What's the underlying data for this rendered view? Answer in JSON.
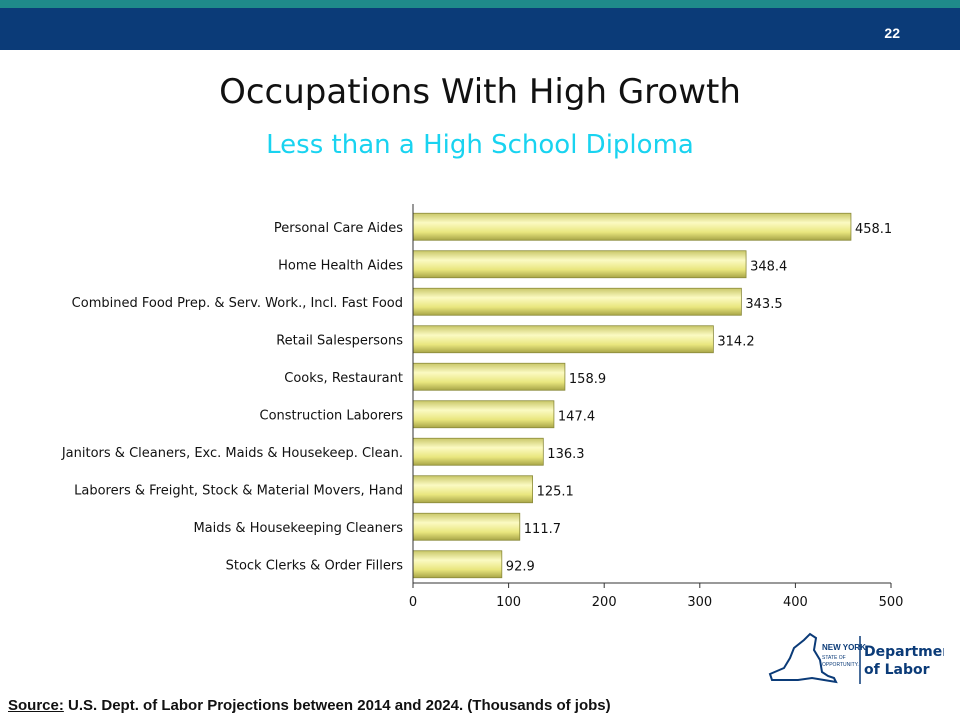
{
  "header": {
    "page_number": "22"
  },
  "title": "Occupations With High Growth",
  "subtitle": "Less than a High School Diploma",
  "chart_data": {
    "type": "bar",
    "orientation": "horizontal",
    "categories": [
      "Personal Care Aides",
      "Home Health Aides",
      "Combined Food Prep. & Serv. Work., Incl. Fast Food",
      "Retail Salespersons",
      "Cooks, Restaurant",
      "Construction Laborers",
      "Janitors & Cleaners, Exc. Maids & Housekeep. Clean.",
      "Laborers & Freight, Stock & Material Movers, Hand",
      "Maids & Housekeeping Cleaners",
      "Stock Clerks & Order Fillers"
    ],
    "values": [
      458.1,
      348.4,
      343.5,
      314.2,
      158.9,
      147.4,
      136.3,
      125.1,
      111.7,
      92.9
    ],
    "value_labels": [
      "458.1",
      "348.4",
      "343.5",
      "314.2",
      "158.9",
      "147.4",
      "136.3",
      "125.1",
      "111.7",
      "92.9"
    ],
    "xticks": [
      "0",
      "100",
      "200",
      "300",
      "400",
      "500"
    ],
    "xlim": [
      0,
      500
    ],
    "grid": false,
    "bar_color": "#f0ee8e",
    "bar_edge_color": "#8a8a3a"
  },
  "source": {
    "label": "Source:",
    "text": " U.S. Dept. of Labor Projections between 2014 and 2024.  (Thousands of jobs)"
  },
  "logo": {
    "line1": "NEW YORK",
    "line2": "STATE OF",
    "line3": "OPPORTUNITY.",
    "dept1": "Department",
    "dept2": "of Labor",
    "color": "#0b3b78"
  }
}
